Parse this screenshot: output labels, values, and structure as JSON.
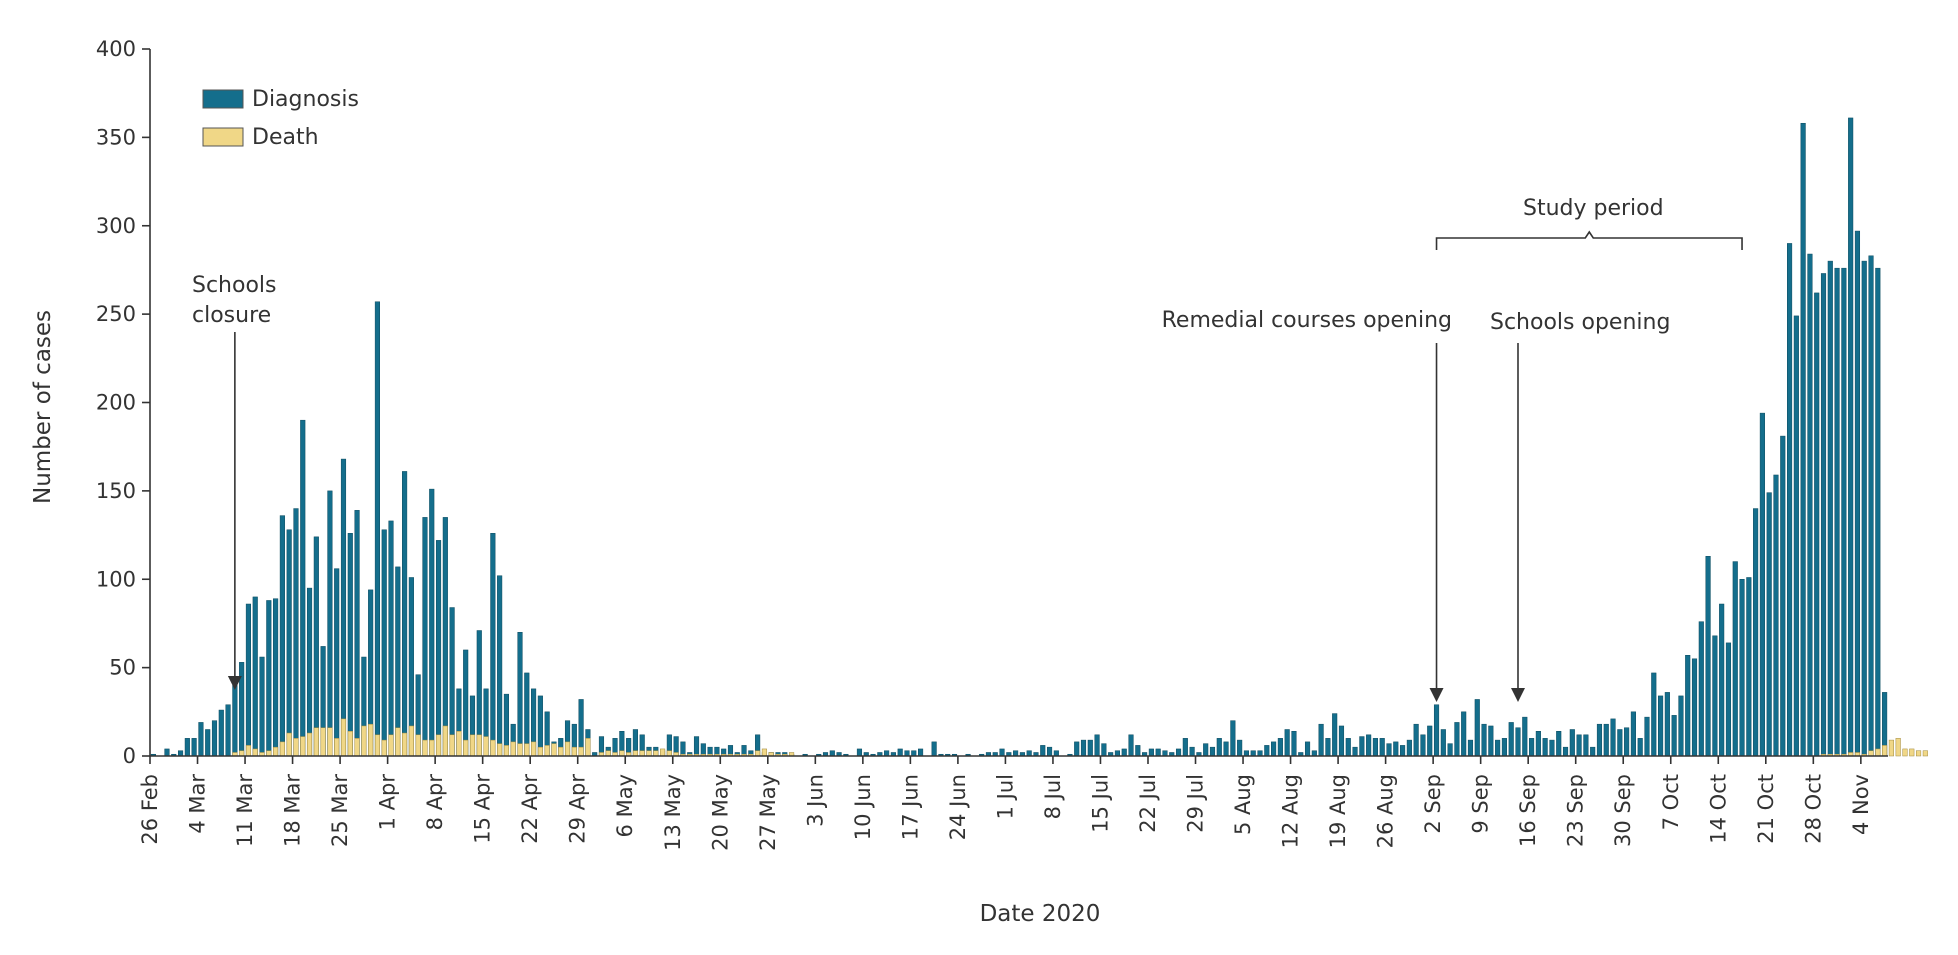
{
  "chart_data": {
    "type": "bar",
    "xlabel": "Date 2020",
    "ylabel": "Number of cases",
    "ylim": [
      0,
      400
    ],
    "yticks": [
      0,
      50,
      100,
      150,
      200,
      250,
      300,
      350,
      400
    ],
    "x_start_date": "2020-02-26",
    "x_tick_labels": [
      "26 Feb",
      "4 Mar",
      "11 Mar",
      "18 Mar",
      "25 Mar",
      "1 Apr",
      "8 Apr",
      "15 Apr",
      "22 Apr",
      "29 Apr",
      "6 May",
      "13 May",
      "20 May",
      "27 May",
      "3 Jun",
      "10 Jun",
      "17 Jun",
      "24 Jun",
      "1 Jul",
      "8 Jul",
      "15 Jul",
      "22 Jul",
      "29 Jul",
      "5 Aug",
      "12 Aug",
      "19 Aug",
      "26 Aug",
      "2 Sep",
      "9 Sep",
      "16 Sep",
      "23 Sep",
      "30 Sep",
      "7 Oct",
      "14 Oct",
      "21 Oct",
      "28 Oct",
      "4 Nov"
    ],
    "legend": {
      "position": "top-left"
    },
    "series": [
      {
        "name": "Diagnosis",
        "color": "#146e8c",
        "values": [
          1,
          0,
          4,
          1,
          3,
          10,
          10,
          19,
          15,
          20,
          26,
          29,
          40,
          53,
          86,
          90,
          56,
          88,
          89,
          136,
          128,
          140,
          190,
          95,
          124,
          62,
          150,
          106,
          168,
          126,
          139,
          56,
          94,
          257,
          128,
          133,
          107,
          161,
          101,
          46,
          135,
          151,
          122,
          135,
          84,
          38,
          60,
          34,
          71,
          38,
          126,
          102,
          35,
          18,
          70,
          47,
          38,
          34,
          25,
          8,
          10,
          20,
          18,
          32,
          15,
          2,
          11,
          5,
          10,
          14,
          10,
          15,
          12,
          5,
          5,
          3,
          12,
          11,
          8,
          2,
          11,
          7,
          5,
          5,
          4,
          6,
          2,
          6,
          3,
          12,
          2,
          2,
          2,
          2,
          1,
          0,
          1,
          0,
          1,
          2,
          3,
          2,
          1,
          0,
          4,
          2,
          1,
          2,
          3,
          2,
          4,
          3,
          3,
          4,
          0,
          8,
          1,
          1,
          1,
          0,
          1,
          0,
          1,
          2,
          2,
          4,
          2,
          3,
          2,
          3,
          2,
          6,
          5,
          3,
          0,
          1,
          8,
          9,
          9,
          12,
          7,
          2,
          3,
          4,
          12,
          6,
          2,
          4,
          4,
          3,
          2,
          4,
          10,
          5,
          2,
          7,
          5,
          10,
          8,
          20,
          9,
          3,
          3,
          3,
          6,
          8,
          10,
          15,
          14,
          2,
          8,
          3,
          18,
          10,
          24,
          17,
          10,
          5,
          11,
          12,
          10,
          10,
          7,
          8,
          6,
          9,
          18,
          12,
          17,
          29,
          15,
          7,
          19,
          25,
          9,
          32,
          18,
          17,
          9,
          10,
          19,
          16,
          22,
          10,
          14,
          10,
          9,
          14,
          5,
          15,
          12,
          12,
          5,
          18,
          18,
          21,
          15,
          16,
          25,
          10,
          22,
          47,
          34,
          36,
          23,
          34,
          57,
          55,
          76,
          113,
          68,
          86,
          64,
          110,
          100,
          101,
          140,
          194,
          149,
          159,
          181,
          290,
          249,
          358,
          284,
          262,
          273,
          280,
          276,
          276,
          361,
          297,
          280,
          283,
          276,
          36
        ]
      },
      {
        "name": "Death",
        "color": "#f0d787",
        "values": [
          0,
          0,
          0,
          0,
          0,
          0,
          0,
          0,
          0,
          0,
          0,
          0,
          2,
          3,
          6,
          4,
          2,
          3,
          5,
          8,
          13,
          10,
          11,
          13,
          16,
          16,
          16,
          10,
          21,
          14,
          10,
          17,
          18,
          12,
          9,
          12,
          16,
          13,
          17,
          12,
          9,
          9,
          12,
          17,
          12,
          14,
          9,
          12,
          12,
          11,
          9,
          7,
          6,
          8,
          7,
          7,
          8,
          5,
          6,
          7,
          5,
          8,
          5,
          5,
          10,
          0,
          2,
          3,
          2,
          3,
          2,
          3,
          3,
          3,
          3,
          4,
          3,
          2,
          1,
          1,
          1,
          1,
          1,
          1,
          1,
          1,
          1,
          1,
          1,
          3,
          4,
          2,
          1,
          1,
          2,
          0,
          0,
          0,
          0,
          0,
          0,
          0,
          0,
          0,
          0,
          0,
          0,
          0,
          0,
          0,
          0,
          0,
          0,
          0,
          0,
          0,
          0,
          0,
          0,
          0,
          0,
          0,
          0,
          0,
          0,
          0,
          0,
          0,
          0,
          0,
          0,
          0,
          0,
          0,
          0,
          0,
          0,
          0,
          0,
          0,
          0,
          0,
          0,
          0,
          0,
          0,
          0,
          0,
          0,
          0,
          0,
          0,
          0,
          0,
          0,
          0,
          0,
          0,
          0,
          0,
          0,
          0,
          0,
          0,
          0,
          0,
          0,
          0,
          0,
          0,
          0,
          0,
          0,
          0,
          0,
          0,
          0,
          0,
          0,
          0,
          0,
          0,
          0,
          0,
          0,
          0,
          0,
          0,
          0,
          0,
          0,
          0,
          0,
          0,
          0,
          0,
          0,
          0,
          0,
          0,
          0,
          0,
          0,
          0,
          0,
          0,
          0,
          0,
          0,
          0,
          0,
          0,
          0,
          0,
          0,
          0,
          0,
          0,
          0,
          0,
          0,
          0,
          0,
          0,
          0,
          0,
          0,
          0,
          0,
          0,
          0,
          0,
          0,
          0,
          0,
          0,
          0,
          0,
          0,
          0,
          0,
          0,
          0,
          0,
          0,
          0,
          1,
          1,
          1,
          1,
          2,
          2,
          1,
          3,
          4,
          6,
          9,
          10,
          4,
          4,
          3,
          3
        ]
      }
    ],
    "annotations": [
      {
        "id": "schools-closure",
        "lines": [
          "Schools",
          "closure"
        ],
        "date": "9 Mar"
      },
      {
        "id": "remedial-courses",
        "lines": [
          "Remedial  courses opening"
        ],
        "date": "2 Sep"
      },
      {
        "id": "schools-opening",
        "lines": [
          "Schools opening"
        ],
        "date": "14 Sep"
      }
    ],
    "study_period": {
      "label": "Study period",
      "start": "2 Sep",
      "end": "17 Oct"
    }
  }
}
